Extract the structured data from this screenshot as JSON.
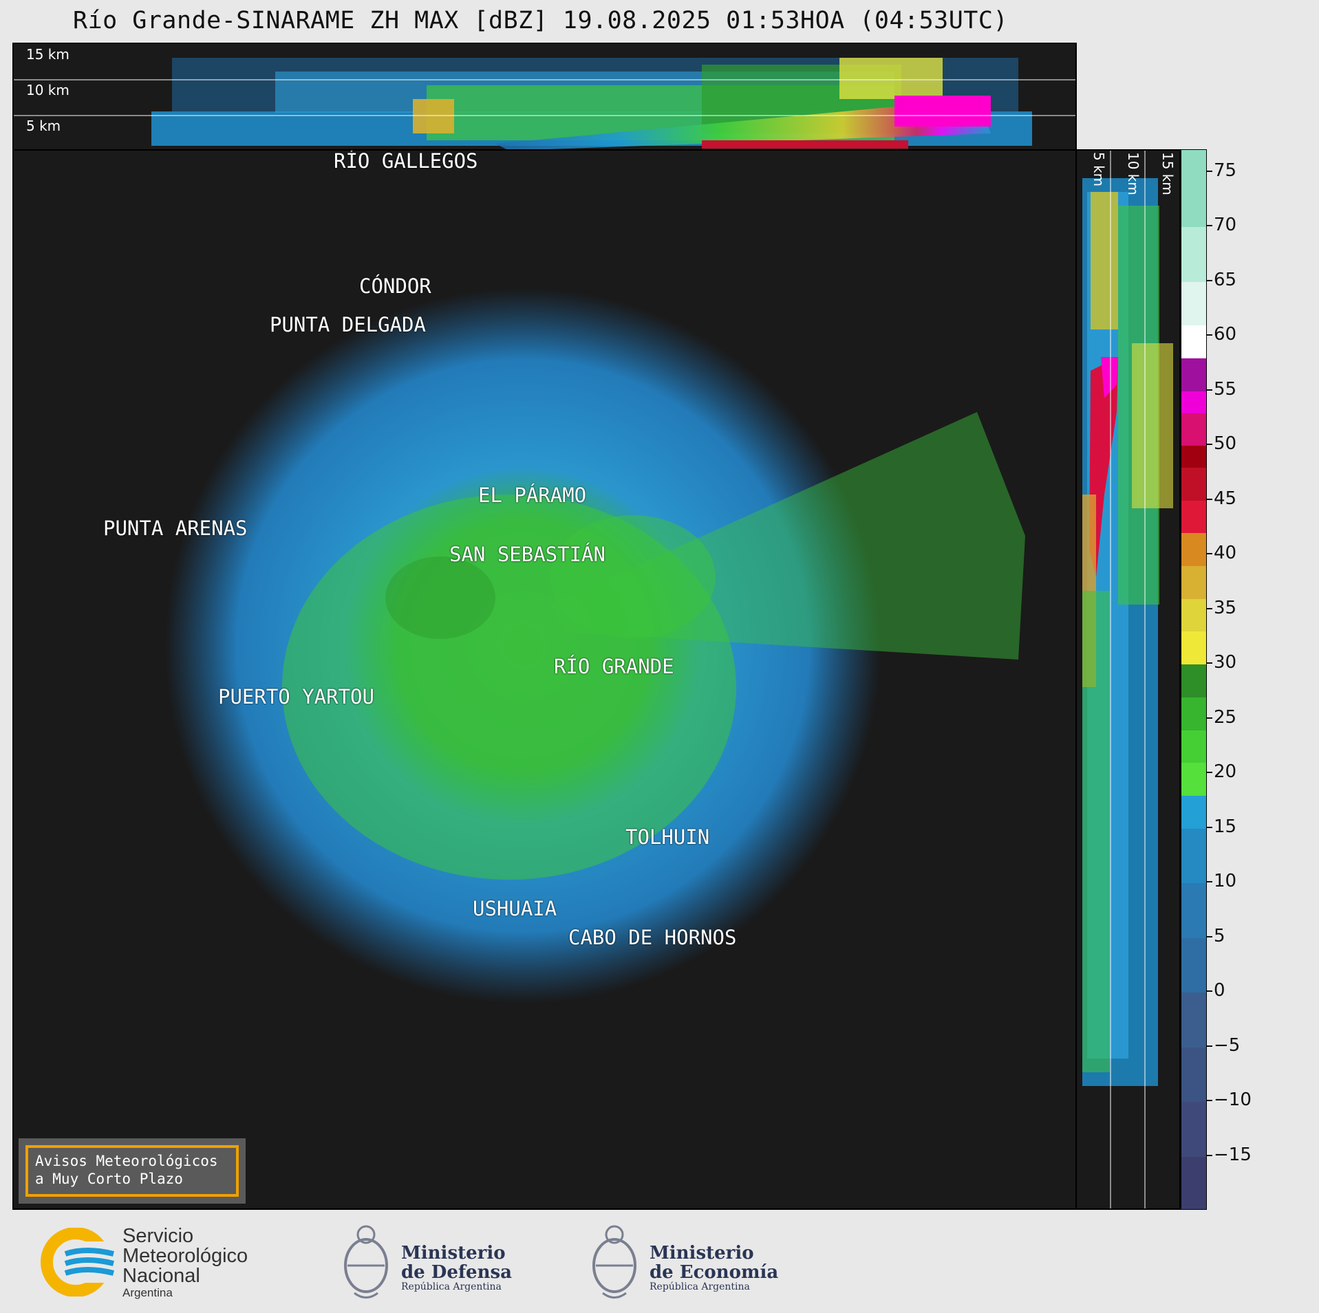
{
  "title": "Río Grande-SINARAME ZH MAX [dBZ] 19.08.2025 01:53HOA (04:53UTC)",
  "height_labels": [
    "15 km",
    "10 km",
    "5 km"
  ],
  "side_height_labels": [
    "5 km",
    "10 km",
    "15 km"
  ],
  "colorbar": {
    "ticks": [
      "75",
      "70",
      "65",
      "60",
      "55",
      "50",
      "45",
      "40",
      "35",
      "30",
      "25",
      "20",
      "15",
      "10",
      "5",
      "0",
      "−5",
      "−10",
      "−15"
    ]
  },
  "cities": [
    {
      "name": "RÍO GALLEGOS"
    },
    {
      "name": "CÓNDOR"
    },
    {
      "name": "PUNTA DELGADA"
    },
    {
      "name": "EL PÁRAMO"
    },
    {
      "name": "PUNTA ARENAS"
    },
    {
      "name": "SAN SEBASTIÁN"
    },
    {
      "name": "RÍO GRANDE"
    },
    {
      "name": "PUERTO YARTOU"
    },
    {
      "name": "TOLHUIN"
    },
    {
      "name": "USHUAIA"
    },
    {
      "name": "CABO DE HORNOS"
    }
  ],
  "aviso": {
    "line1": "Avisos Meteorológicos",
    "line2": "a Muy Corto Plazo"
  },
  "logos": {
    "smn": {
      "line1": "Servicio",
      "line2": "Meteorológico",
      "line3": "Nacional",
      "country": "Argentina"
    },
    "defensa": {
      "line1": "Ministerio",
      "line2": "de Defensa",
      "sub": "República Argentina"
    },
    "economia": {
      "line1": "Ministerio",
      "line2": "de Economía",
      "sub": "República Argentina"
    }
  },
  "colors": {
    "background": "#1a1a1a",
    "coast": "#cfcfcf",
    "accent_orange": "#f0a000",
    "smn_blue": "#1a9ad6",
    "smn_yellow": "#f5b400"
  }
}
